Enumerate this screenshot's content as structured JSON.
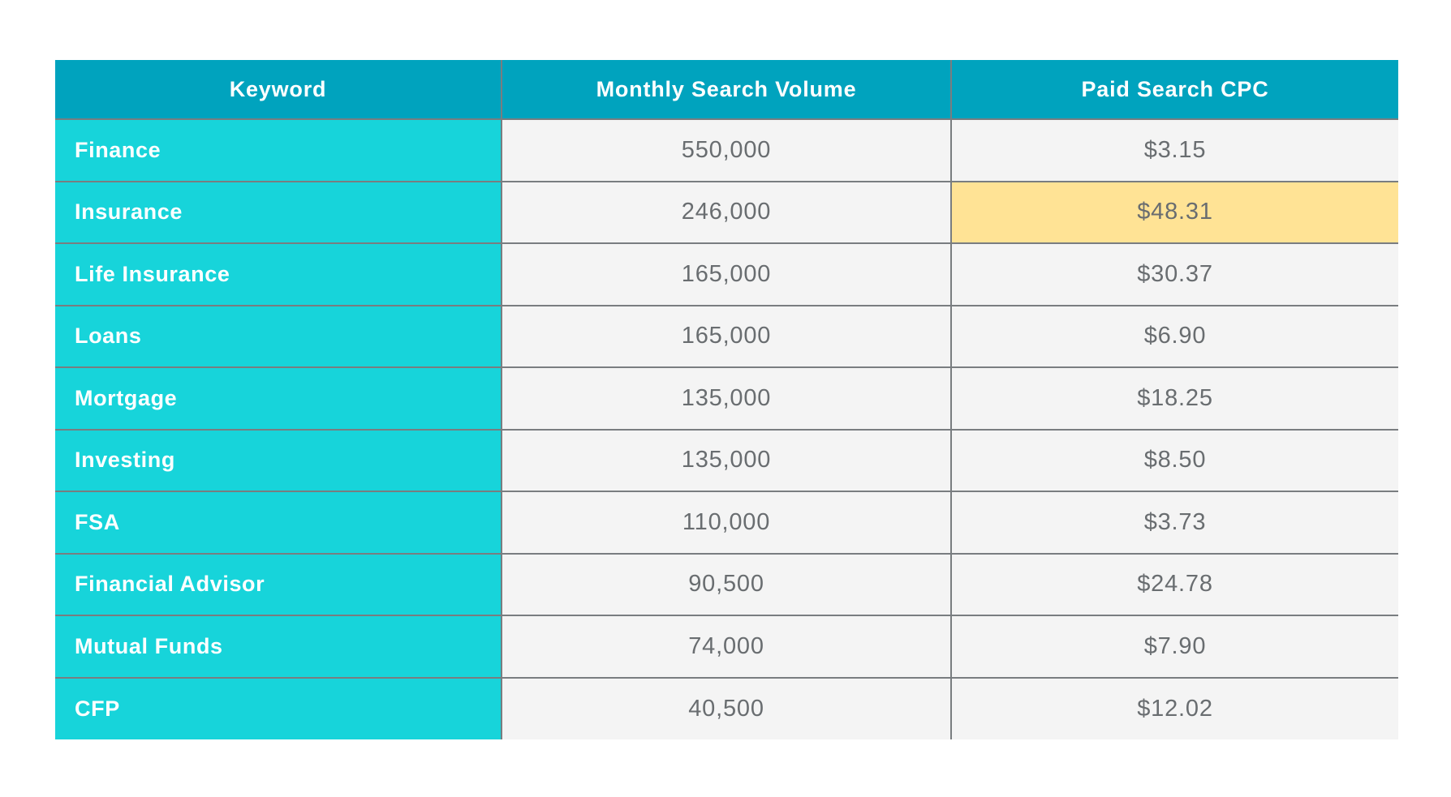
{
  "table": {
    "columns": [
      {
        "key": "keyword",
        "label": "Keyword"
      },
      {
        "key": "volume",
        "label": "Monthly Search Volume"
      },
      {
        "key": "cpc",
        "label": "Paid Search CPC"
      }
    ],
    "rows": [
      {
        "keyword": "Finance",
        "volume": "550,000",
        "cpc": "$3.15",
        "highlight_cpc": false
      },
      {
        "keyword": "Insurance",
        "volume": "246,000",
        "cpc": "$48.31",
        "highlight_cpc": true
      },
      {
        "keyword": "Life Insurance",
        "volume": "165,000",
        "cpc": "$30.37",
        "highlight_cpc": false
      },
      {
        "keyword": "Loans",
        "volume": "165,000",
        "cpc": "$6.90",
        "highlight_cpc": false
      },
      {
        "keyword": "Mortgage",
        "volume": "135,000",
        "cpc": "$18.25",
        "highlight_cpc": false
      },
      {
        "keyword": "Investing",
        "volume": "135,000",
        "cpc": "$8.50",
        "highlight_cpc": false
      },
      {
        "keyword": "FSA",
        "volume": "110,000",
        "cpc": "$3.73",
        "highlight_cpc": false
      },
      {
        "keyword": "Financial Advisor",
        "volume": "90,500",
        "cpc": "$24.78",
        "highlight_cpc": false
      },
      {
        "keyword": "Mutual Funds",
        "volume": "74,000",
        "cpc": "$7.90",
        "highlight_cpc": false
      },
      {
        "keyword": "CFP",
        "volume": "40,500",
        "cpc": "$12.02",
        "highlight_cpc": false
      }
    ],
    "colors": {
      "header_bg": "#00a3be",
      "keyword_bg": "#17d4da",
      "cell_bg": "#f4f4f4",
      "highlight_bg": "#ffe395",
      "grid_line": "#797d80",
      "header_text": "#ffffff",
      "cell_text": "#696d70"
    }
  },
  "chart_data": {
    "type": "table",
    "title": "",
    "columns": [
      "Keyword",
      "Monthly Search Volume",
      "Paid Search CPC"
    ],
    "categories": [
      "Finance",
      "Insurance",
      "Life Insurance",
      "Loans",
      "Mortgage",
      "Investing",
      "FSA",
      "Financial Advisor",
      "Mutual Funds",
      "CFP"
    ],
    "series": [
      {
        "name": "Monthly Search Volume",
        "values": [
          550000,
          246000,
          165000,
          165000,
          135000,
          135000,
          110000,
          90500,
          74000,
          40500
        ]
      },
      {
        "name": "Paid Search CPC",
        "values": [
          3.15,
          48.31,
          30.37,
          6.9,
          18.25,
          8.5,
          3.73,
          24.78,
          7.9,
          12.02
        ]
      }
    ],
    "annotations": [
      "Highlighted cell: Insurance Paid Search CPC $48.31 (yellow)"
    ]
  }
}
